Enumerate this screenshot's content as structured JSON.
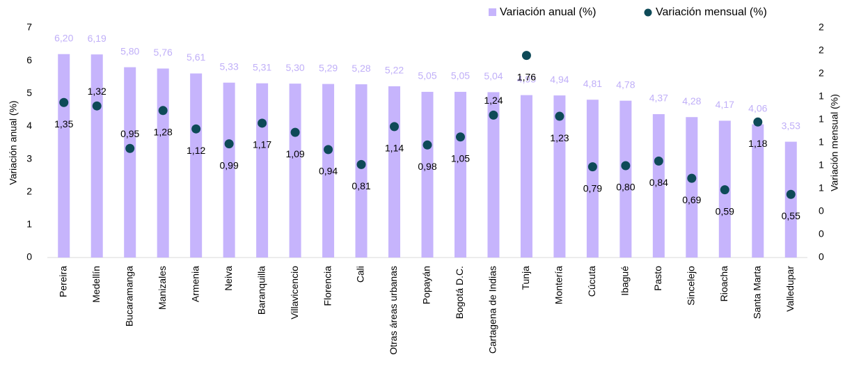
{
  "chart_data": {
    "type": "bar-scatter",
    "categories": [
      "Pereira",
      "Medellín",
      "Bucaramanga",
      "Manizales",
      "Armenia",
      "Neiva",
      "Baranquilla",
      "Villavicencio",
      "Florencia",
      "Cali",
      "Otras áreas urbanas",
      "Popayán",
      "Bogotá D.C.",
      "Cartagena de Indias",
      "Tunja",
      "Montería",
      "Cúcuta",
      "Ibagué",
      "Pasto",
      "Sincelejo",
      "Rioacha",
      "Santa Marta",
      "Valledupar"
    ],
    "series": [
      {
        "name": "Variación anual (%)",
        "color": "#c6b4fc",
        "label_color": "#c0aff8",
        "values": [
          6.2,
          6.19,
          5.8,
          5.76,
          5.61,
          5.33,
          5.31,
          5.3,
          5.29,
          5.28,
          5.22,
          5.05,
          5.05,
          5.04,
          4.95,
          4.94,
          4.81,
          4.78,
          4.37,
          4.28,
          4.17,
          4.06,
          3.53
        ],
        "value_labels": [
          "6,20",
          "6,19",
          "5,80",
          "5,76",
          "5,61",
          "5,33",
          "5,31",
          "5,30",
          "5,29",
          "5,28",
          "5,22",
          "5,05",
          "5,05",
          "5,04",
          "4,95",
          "4,94",
          "4,81",
          "4,78",
          "4,37",
          "4,28",
          "4,17",
          "4,06",
          "3,53"
        ]
      },
      {
        "name": "Variación mensual (%)",
        "color": "#0e4a58",
        "axis": "y2",
        "values": [
          1.35,
          1.32,
          0.95,
          1.28,
          1.12,
          0.99,
          1.17,
          1.09,
          0.94,
          0.81,
          1.14,
          0.98,
          1.05,
          1.24,
          1.76,
          1.23,
          0.79,
          0.8,
          0.84,
          0.69,
          0.59,
          1.18,
          0.55
        ],
        "value_labels": [
          "1,35",
          "1,32",
          "0,95",
          "1,28",
          "1,12",
          "0,99",
          "1,17",
          "1,09",
          "0,94",
          "0,81",
          "1,14",
          "0,98",
          "1,05",
          "1,24",
          "1,76",
          "1,23",
          "0,79",
          "0,80",
          "0,84",
          "0,69",
          "0,59",
          "1,18",
          "0,55"
        ]
      }
    ],
    "y_label": "Variación anual (%)",
    "y2_label": "Variación mensual (%)",
    "ylim": [
      0,
      7
    ],
    "yticks": [
      0,
      1,
      2,
      3,
      4,
      5,
      6,
      7
    ],
    "y2lim": [
      0,
      2
    ],
    "y2ticks": [
      0,
      {
        "value": 0.2,
        "label": "0"
      },
      {
        "value": 0.4,
        "label": "0"
      },
      {
        "value": 0.6,
        "label": "1"
      },
      {
        "value": 0.8,
        "label": "1"
      },
      1,
      {
        "value": 1.2,
        "label": "1"
      },
      {
        "value": 1.4,
        "label": "1"
      },
      {
        "value": 1.6,
        "label": "2"
      },
      {
        "value": 1.8,
        "label": "2"
      },
      2
    ],
    "legend": "top-right"
  }
}
